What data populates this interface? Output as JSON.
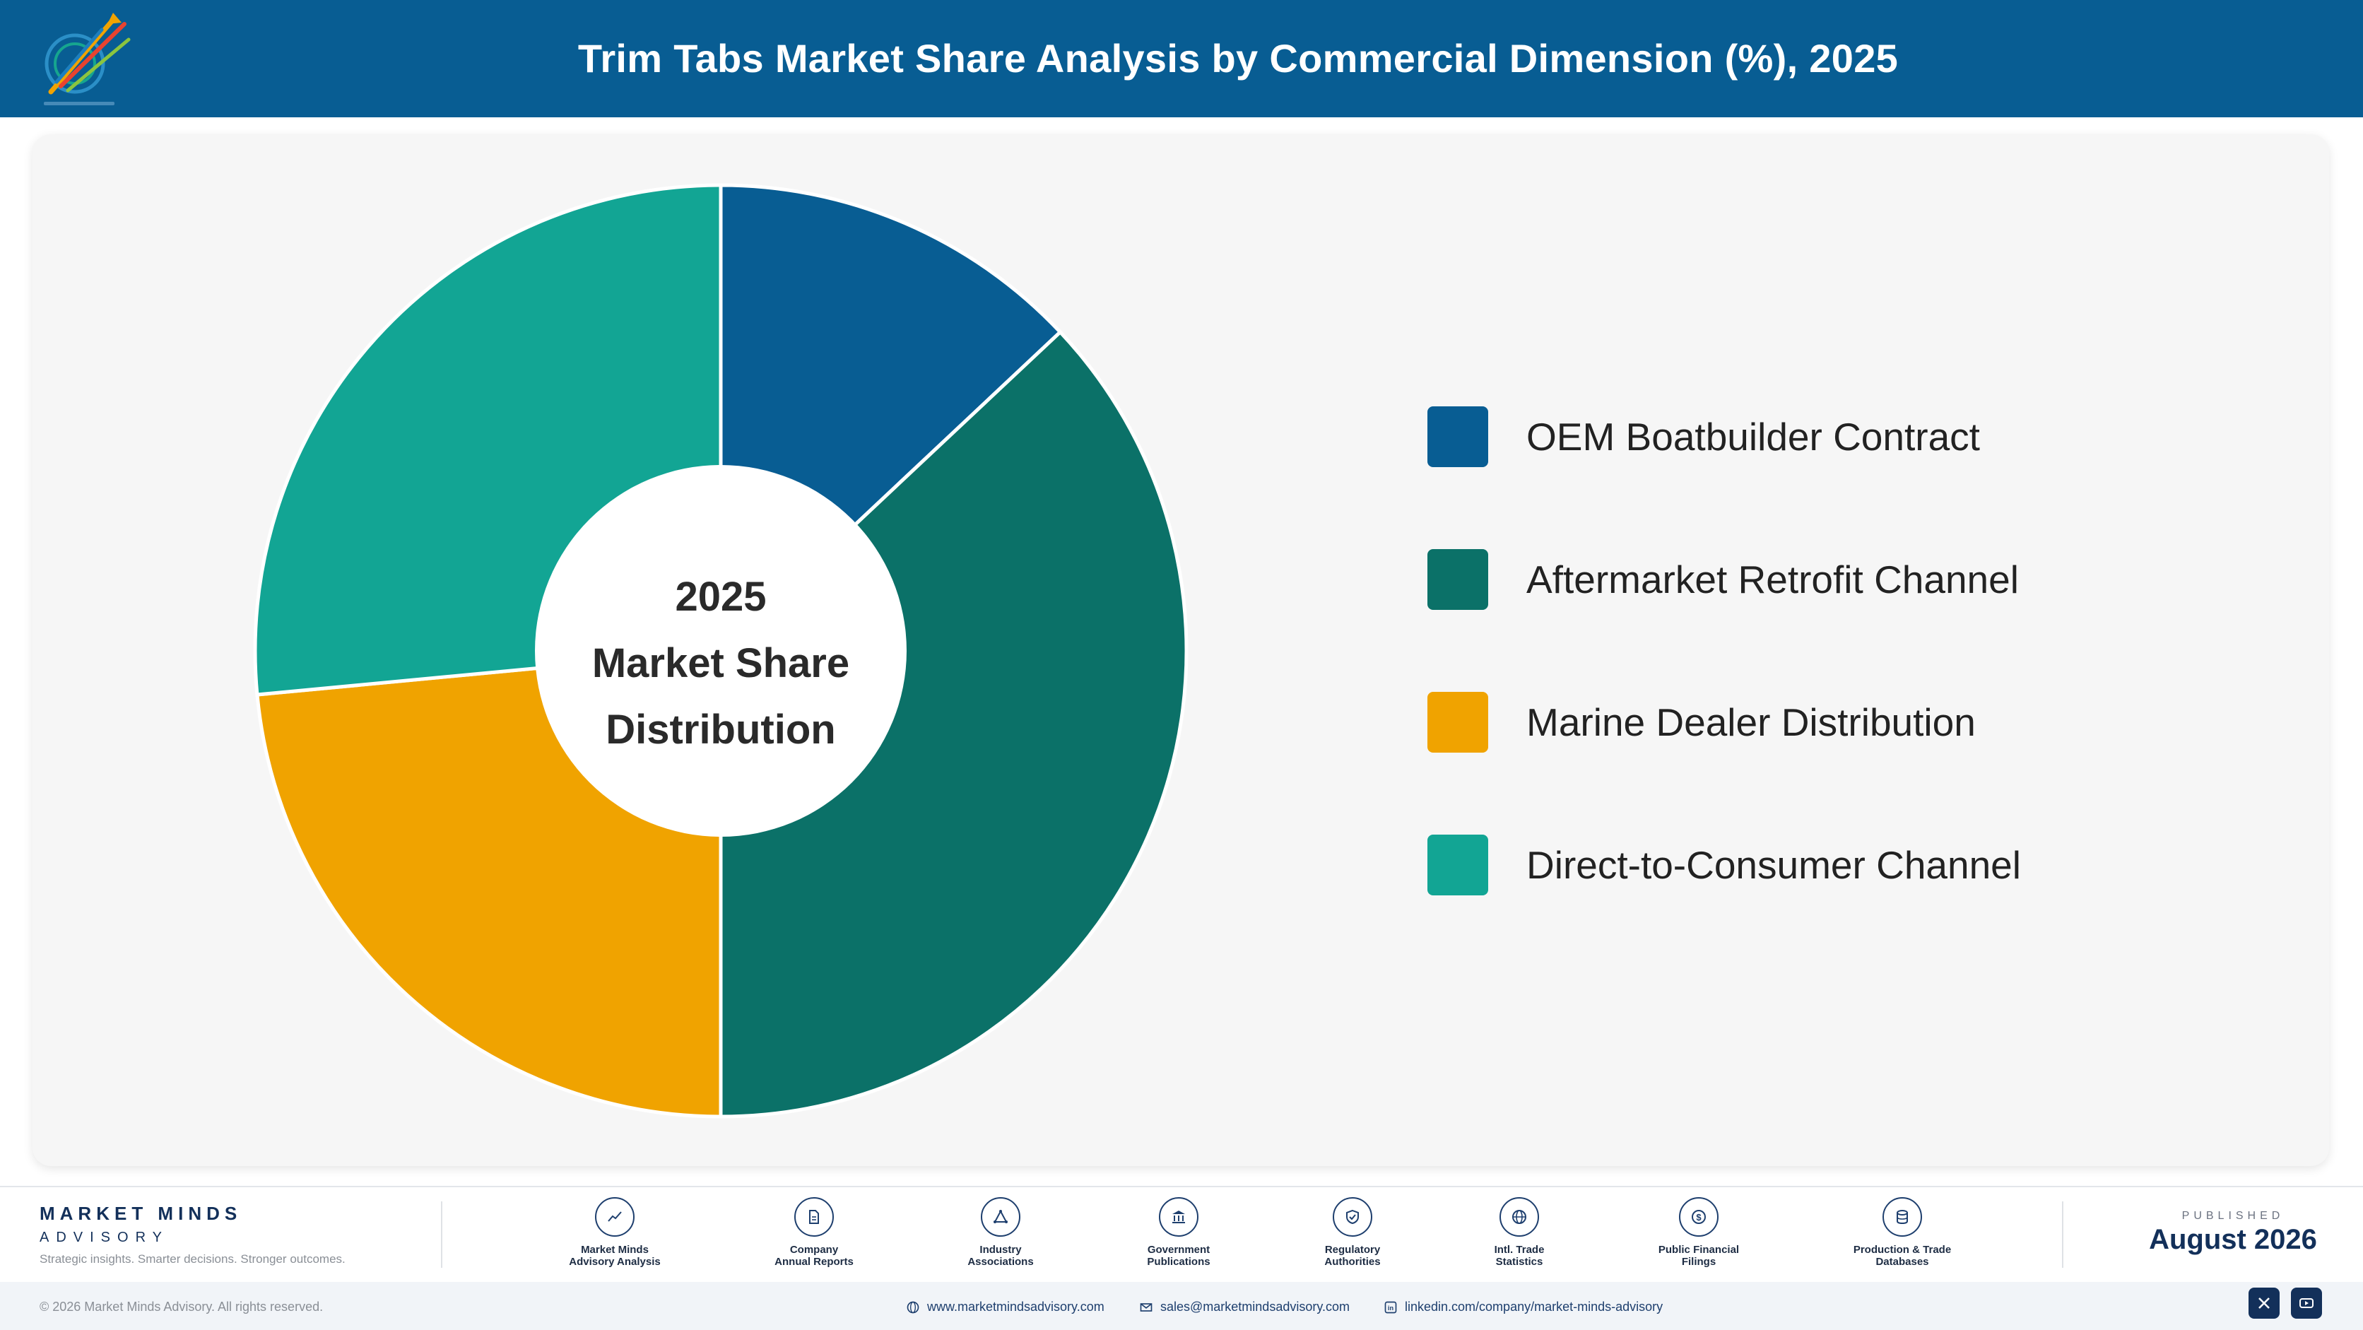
{
  "header": {
    "title": "Trim Tabs Market Share Analysis by Commercial Dimension (%), 2025"
  },
  "chart_data": {
    "type": "pie",
    "style": "donut",
    "center_label": [
      "2025",
      "Market Share",
      "Distribution"
    ],
    "categories": [
      "OEM Boatbuilder Contract",
      "Aftermarket Retrofit Channel",
      "Marine Dealer Distribution",
      "Direct-to-Consumer Channel"
    ],
    "values": [
      13.0,
      37.0,
      23.5,
      26.5
    ],
    "colors": [
      "#085d93",
      "#0b7168",
      "#f0a300",
      "#12a594"
    ],
    "legend_position": "right"
  },
  "footer": {
    "brand_name": "MARKET MINDS",
    "brand_sub": "ADVISORY",
    "brand_tagline": "Strategic insights. Smarter decisions. Stronger outcomes.",
    "sources": [
      {
        "line1": "Market Minds",
        "line2": "Advisory Analysis",
        "icon": "trend-line-icon"
      },
      {
        "line1": "Company",
        "line2": "Annual Reports",
        "icon": "document-icon"
      },
      {
        "line1": "Industry",
        "line2": "Associations",
        "icon": "network-icon"
      },
      {
        "line1": "Government",
        "line2": "Publications",
        "icon": "government-building-icon"
      },
      {
        "line1": "Regulatory",
        "line2": "Authorities",
        "icon": "shield-check-icon"
      },
      {
        "line1": "Intl. Trade",
        "line2": "Statistics",
        "icon": "globe-icon"
      },
      {
        "line1": "Public Financial",
        "line2": "Filings",
        "icon": "dollar-coin-icon"
      },
      {
        "line1": "Production & Trade",
        "line2": "Databases",
        "icon": "database-icon"
      }
    ],
    "published_label": "PUBLISHED",
    "published_date": "August 2026",
    "copyright": "© 2026 Market Minds Advisory. All rights reserved.",
    "website": "www.marketmindsadvisory.com",
    "email": "sales@marketmindsadvisory.com",
    "linkedin": "linkedin.com/company/market-minds-advisory"
  }
}
